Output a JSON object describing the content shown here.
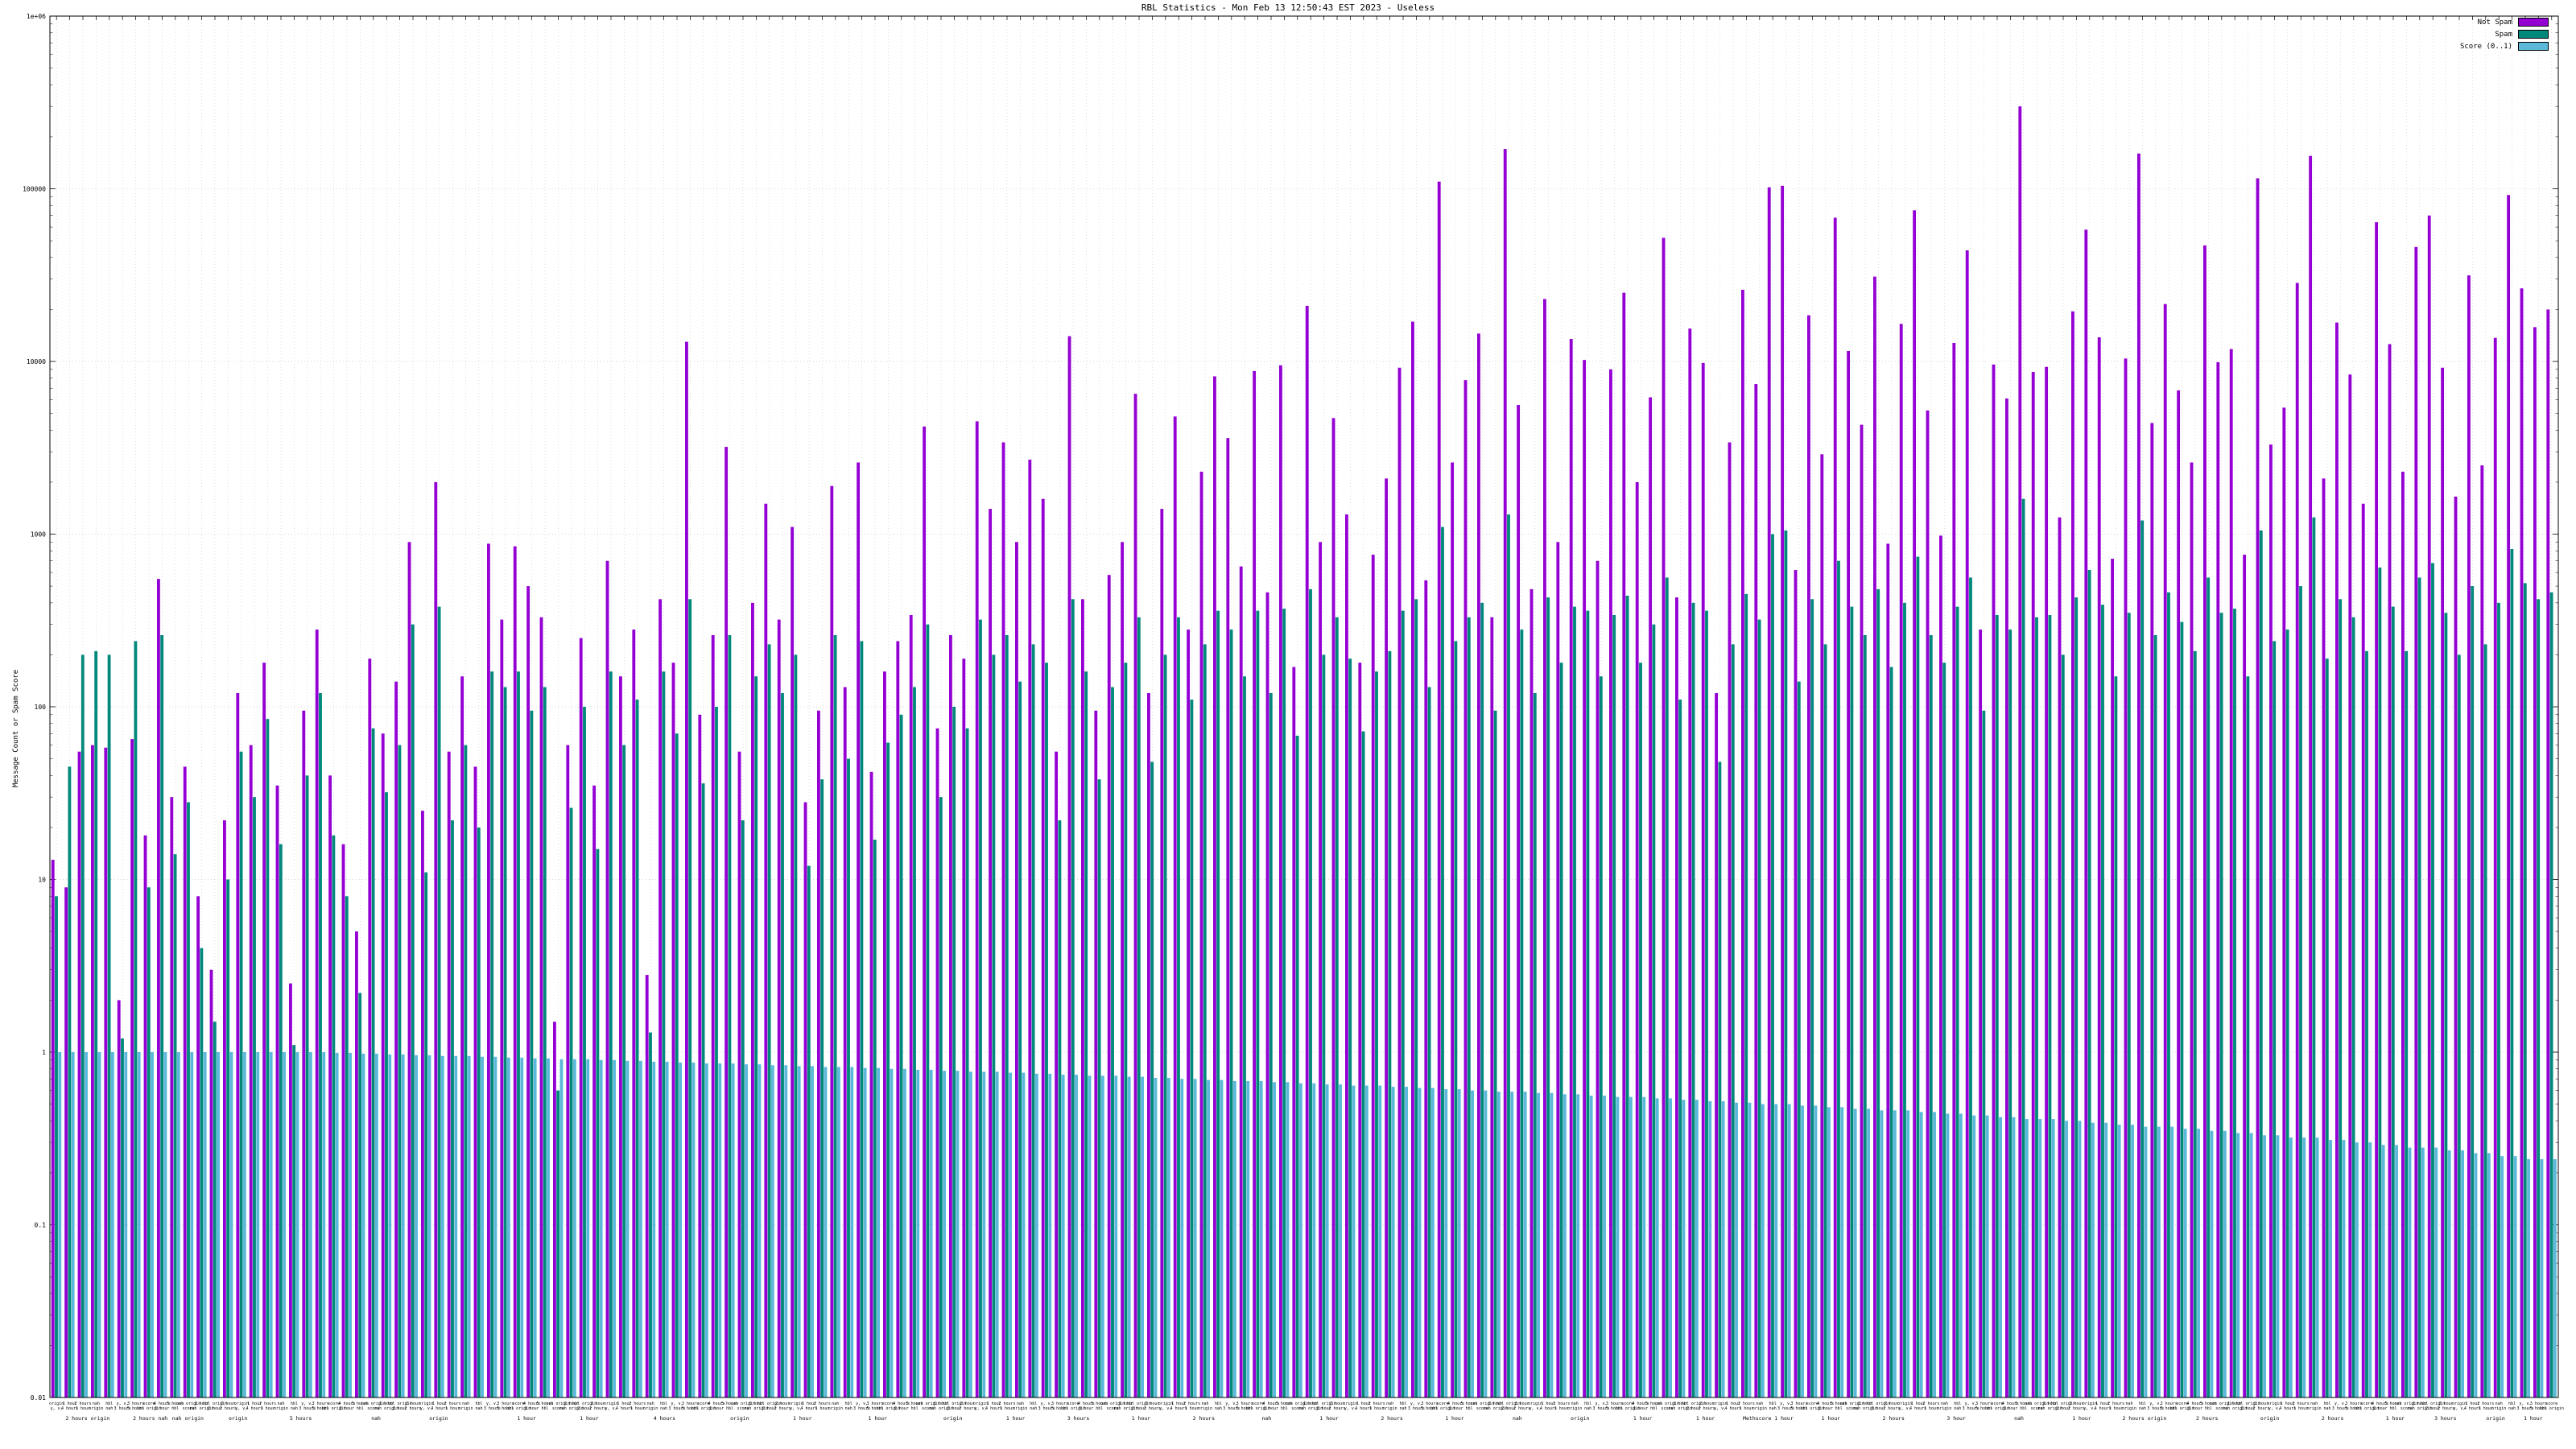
{
  "chart_data": {
    "type": "bar",
    "title": "RBL Statistics - Mon Feb 13 12:50:43 EST 2023 - Useless",
    "ylabel": "Message Count or Spam Score",
    "y_scale": "log",
    "ylim": [
      0.01,
      1000000
    ],
    "yticks": [
      "1e+06",
      "100000",
      "10000",
      "1000",
      "100",
      "10",
      "1",
      "0.1",
      "0.01"
    ],
    "grid": true,
    "legend_position": "top-right",
    "tick_label_cycle": [
      "origin",
      "1 hour",
      "2 hours",
      "nah",
      "hbl",
      "y, v,",
      "3 hours",
      "score",
      "4 hours",
      "5 hours",
      "nah origin",
      "1 hour",
      "hbl origin",
      "2 hour"
    ],
    "group_labels": [
      {
        "x": 0.015,
        "label": "2 hours origin"
      },
      {
        "x": 0.04,
        "label": "2 hours nah"
      },
      {
        "x": 0.055,
        "label": "nah origin"
      },
      {
        "x": 0.075,
        "label": "origin"
      },
      {
        "x": 0.1,
        "label": "5 hours"
      },
      {
        "x": 0.13,
        "label": "nah"
      },
      {
        "x": 0.155,
        "label": "origin"
      },
      {
        "x": 0.19,
        "label": "1 hour"
      },
      {
        "x": 0.215,
        "label": "1 hour"
      },
      {
        "x": 0.245,
        "label": "4 hours"
      },
      {
        "x": 0.275,
        "label": "origin"
      },
      {
        "x": 0.3,
        "label": "1 hour"
      },
      {
        "x": 0.33,
        "label": "1 hour"
      },
      {
        "x": 0.36,
        "label": "origin"
      },
      {
        "x": 0.385,
        "label": "1 hour"
      },
      {
        "x": 0.41,
        "label": "3 hours"
      },
      {
        "x": 0.435,
        "label": "1 hour"
      },
      {
        "x": 0.46,
        "label": "2 hours"
      },
      {
        "x": 0.485,
        "label": "nah"
      },
      {
        "x": 0.51,
        "label": "1 hour"
      },
      {
        "x": 0.535,
        "label": "2 hours"
      },
      {
        "x": 0.56,
        "label": "1 hour"
      },
      {
        "x": 0.585,
        "label": "nah"
      },
      {
        "x": 0.61,
        "label": "origin"
      },
      {
        "x": 0.635,
        "label": "1 hour"
      },
      {
        "x": 0.66,
        "label": "1 hour"
      },
      {
        "x": 0.685,
        "label": "Methscore 1 hour"
      },
      {
        "x": 0.71,
        "label": "1 hour"
      },
      {
        "x": 0.735,
        "label": "2 hours"
      },
      {
        "x": 0.76,
        "label": "3 hour"
      },
      {
        "x": 0.785,
        "label": "nah"
      },
      {
        "x": 0.81,
        "label": "1 hour"
      },
      {
        "x": 0.835,
        "label": "2 hours origin"
      },
      {
        "x": 0.86,
        "label": "2 hours"
      },
      {
        "x": 0.885,
        "label": "origin"
      },
      {
        "x": 0.91,
        "label": "2 hours"
      },
      {
        "x": 0.935,
        "label": "1 hour"
      },
      {
        "x": 0.955,
        "label": "3 hours"
      },
      {
        "x": 0.975,
        "label": "origin"
      },
      {
        "x": 0.99,
        "label": "1 hour"
      }
    ],
    "series": [
      {
        "name": "Not Spam",
        "color": "#9400d3",
        "values": [
          13,
          9,
          55,
          60,
          58,
          2,
          65,
          18,
          550,
          30,
          45,
          8,
          3,
          22,
          120,
          60,
          180,
          35,
          2.5,
          95,
          280,
          40,
          16,
          5,
          190,
          70,
          140,
          900,
          25,
          2000,
          55,
          150,
          45,
          880,
          320,
          850,
          500,
          330,
          1.5,
          60,
          250,
          35,
          700,
          150,
          280,
          2.8,
          420,
          180,
          13000,
          90,
          260,
          3200,
          55,
          400,
          1500,
          320,
          1100,
          28,
          95,
          1900,
          130,
          2600,
          42,
          160,
          240,
          340,
          4200,
          75,
          260,
          190,
          4500,
          1400,
          3400,
          900,
          2700,
          1600,
          55,
          14000,
          420,
          95,
          580,
          900,
          6500,
          120,
          1400,
          4800,
          280,
          2300,
          8200,
          3600,
          650,
          8800,
          460,
          9500,
          170,
          21000,
          900,
          4700,
          1300,
          180,
          760,
          2100,
          9200,
          17000,
          540,
          110000,
          2600,
          7800,
          14500,
          330,
          170000,
          5600,
          480,
          23000,
          900,
          13500,
          10200,
          700,
          9000,
          25000,
          2000,
          6200,
          52000,
          430,
          15500,
          9800,
          120,
          3400,
          26000,
          7400,
          102000,
          104000,
          620,
          18500,
          2900,
          68000,
          11500,
          4300,
          31000,
          880,
          16500,
          75000,
          5200,
          980,
          12800,
          44000,
          280,
          9600,
          6100,
          300000,
          8700,
          9300,
          1250,
          19500,
          58000,
          13800,
          720,
          10400,
          160000,
          4400,
          21500,
          6800,
          2600,
          47000,
          9900,
          11800,
          760,
          115000,
          3300,
          5400,
          28500,
          155000,
          2100,
          16800,
          8400,
          1500,
          64000,
          12600,
          2300,
          46000,
          70000,
          9200,
          1650,
          31500,
          2500,
          13700,
          92000,
          26500,
          15800,
          20000
        ]
      },
      {
        "name": "Spam",
        "color": "#00897b",
        "values": [
          8,
          45,
          200,
          210,
          200,
          1.2,
          240,
          9,
          260,
          14,
          28,
          4,
          1.5,
          10,
          55,
          30,
          85,
          16,
          1.1,
          40,
          120,
          18,
          8,
          2.2,
          75,
          32,
          60,
          300,
          11,
          380,
          22,
          60,
          20,
          160,
          130,
          160,
          95,
          130,
          0.6,
          26,
          100,
          15,
          160,
          60,
          110,
          1.3,
          160,
          70,
          420,
          36,
          100,
          260,
          22,
          150,
          230,
          120,
          200,
          12,
          38,
          260,
          50,
          240,
          17,
          62,
          90,
          130,
          300,
          30,
          100,
          75,
          320,
          200,
          260,
          140,
          230,
          180,
          22,
          420,
          160,
          38,
          130,
          180,
          330,
          48,
          200,
          330,
          110,
          230,
          360,
          280,
          150,
          360,
          120,
          370,
          68,
          480,
          200,
          330,
          190,
          72,
          160,
          210,
          360,
          420,
          130,
          1100,
          240,
          330,
          400,
          95,
          1300,
          280,
          120,
          430,
          180,
          380,
          360,
          150,
          340,
          440,
          180,
          300,
          560,
          110,
          400,
          360,
          48,
          230,
          450,
          320,
          1000,
          1050,
          140,
          420,
          230,
          700,
          380,
          260,
          480,
          170,
          400,
          740,
          260,
          180,
          380,
          560,
          95,
          340,
          280,
          1600,
          330,
          340,
          200,
          430,
          620,
          390,
          150,
          350,
          1200,
          260,
          460,
          310,
          210,
          560,
          350,
          370,
          150,
          1050,
          240,
          280,
          500,
          1250,
          190,
          420,
          330,
          210,
          640,
          380,
          210,
          560,
          680,
          350,
          200,
          500,
          230,
          400,
          820,
          520,
          420,
          460
        ]
      },
      {
        "name": "Score (0..1)",
        "color": "#5bb8d8",
        "values": [
          1,
          1,
          1,
          1,
          1,
          1,
          1,
          1,
          1,
          1,
          1,
          1,
          1,
          1,
          1,
          1,
          1,
          1,
          1,
          1,
          1,
          0.99,
          0.99,
          0.98,
          0.98,
          0.97,
          0.97,
          0.96,
          0.96,
          0.95,
          0.95,
          0.95,
          0.94,
          0.94,
          0.93,
          0.93,
          0.92,
          0.92,
          0.91,
          0.91,
          0.91,
          0.9,
          0.9,
          0.89,
          0.89,
          0.88,
          0.88,
          0.87,
          0.87,
          0.86,
          0.86,
          0.86,
          0.85,
          0.85,
          0.84,
          0.84,
          0.83,
          0.83,
          0.82,
          0.82,
          0.82,
          0.81,
          0.81,
          0.8,
          0.8,
          0.79,
          0.79,
          0.78,
          0.78,
          0.77,
          0.77,
          0.77,
          0.76,
          0.76,
          0.75,
          0.75,
          0.74,
          0.74,
          0.73,
          0.73,
          0.73,
          0.72,
          0.72,
          0.71,
          0.71,
          0.7,
          0.7,
          0.69,
          0.69,
          0.68,
          0.68,
          0.68,
          0.67,
          0.67,
          0.66,
          0.66,
          0.65,
          0.65,
          0.64,
          0.64,
          0.64,
          0.63,
          0.63,
          0.62,
          0.62,
          0.61,
          0.61,
          0.6,
          0.6,
          0.59,
          0.59,
          0.59,
          0.58,
          0.58,
          0.57,
          0.57,
          0.56,
          0.56,
          0.55,
          0.55,
          0.55,
          0.54,
          0.54,
          0.53,
          0.53,
          0.52,
          0.52,
          0.51,
          0.51,
          0.5,
          0.5,
          0.5,
          0.49,
          0.49,
          0.48,
          0.48,
          0.47,
          0.47,
          0.46,
          0.46,
          0.46,
          0.45,
          0.45,
          0.44,
          0.44,
          0.43,
          0.43,
          0.42,
          0.42,
          0.41,
          0.41,
          0.41,
          0.4,
          0.4,
          0.39,
          0.39,
          0.38,
          0.38,
          0.37,
          0.37,
          0.37,
          0.36,
          0.36,
          0.35,
          0.35,
          0.34,
          0.34,
          0.33,
          0.33,
          0.32,
          0.32,
          0.32,
          0.31,
          0.31,
          0.3,
          0.3,
          0.29,
          0.29,
          0.28,
          0.28,
          0.28,
          0.27,
          0.27,
          0.26,
          0.26,
          0.25,
          0.25,
          0.24,
          0.24,
          0.24
        ]
      }
    ]
  }
}
